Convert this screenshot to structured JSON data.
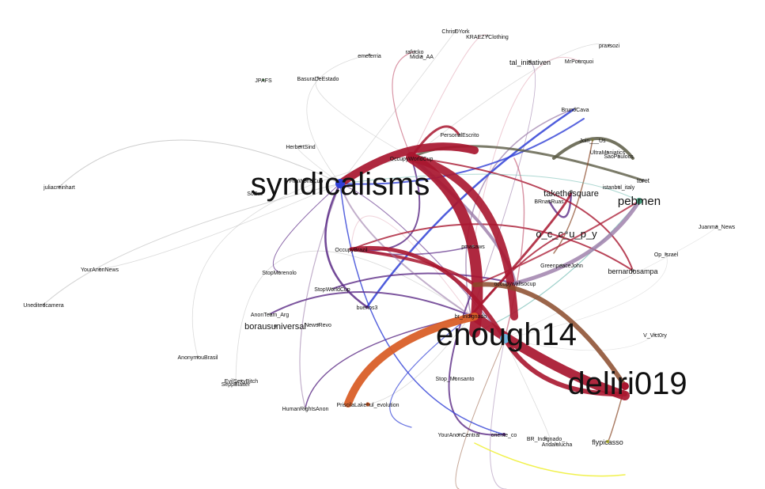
{
  "graph": {
    "colors": {
      "crimson": "#a8162f",
      "crimson_light": "#c0506a",
      "orange": "#d95f28",
      "purple": "#5b2a86",
      "blue": "#2f3fd6",
      "mauve": "#9a7aa8",
      "olive": "#5a5a44",
      "brown": "#8a4a2a",
      "grey": "#b8b8b8",
      "pink": "#e2a6b6",
      "teal": "#5fb3a8",
      "yellow": "#f0f03a"
    },
    "nodes": [
      {
        "id": "syndicalisms",
        "label": "syndicalisms"
      },
      {
        "id": "enough14",
        "label": "enough14"
      },
      {
        "id": "deliri019",
        "label": "deliri019"
      },
      {
        "id": "pebmen",
        "label": "pebmen"
      },
      {
        "id": "occupy",
        "label": "o_c_c_u_p_y"
      },
      {
        "id": "takethesquare",
        "label": "takethesquare"
      },
      {
        "id": "borausuniversal",
        "label": "borausuniversal"
      },
      {
        "id": "tal_initiativen",
        "label": "tal_initiativen"
      },
      {
        "id": "bernardosampa",
        "label": "bernardosampa"
      },
      {
        "id": "flypicasso",
        "label": "flypicasso"
      },
      {
        "id": "toret",
        "label": "toret"
      },
      {
        "id": "ChrisDYork",
        "label": "ChrisDYork"
      },
      {
        "id": "KRAEZYClothing",
        "label": "KRAEZYClothing"
      },
      {
        "id": "praxsozi",
        "label": "praxsozi"
      },
      {
        "id": "rafucko",
        "label": "rafucko"
      },
      {
        "id": "Midia_AA",
        "label": "Midia_AA"
      },
      {
        "id": "emeterria",
        "label": "emeterria"
      },
      {
        "id": "MrPourquoi",
        "label": "MrPourquoi"
      },
      {
        "id": "JPAFS",
        "label": "JPAFS"
      },
      {
        "id": "BasuraDeEstado",
        "label": "BasuraDeEstado"
      },
      {
        "id": "BrunoCava",
        "label": "BrunoCava"
      },
      {
        "id": "PersonalEscrito",
        "label": "PersonalEscrito"
      },
      {
        "id": "Join___Us",
        "label": "Join___Us"
      },
      {
        "id": "HerbertSind",
        "label": "HerbertSind"
      },
      {
        "id": "UltraManiatics",
        "label": "UltraManiatics"
      },
      {
        "id": "OccupyWorldCup",
        "label": "OccupyWorldCup"
      },
      {
        "id": "SaoPaulocs",
        "label": "SaoPaulocs"
      },
      {
        "id": "juliacreinhart",
        "label": "juliacreinhart"
      },
      {
        "id": "FifaWorldCup",
        "label": "FifaWorldCup"
      },
      {
        "id": "istanbul_italy",
        "label": "istanbul_italy"
      },
      {
        "id": "SoDm",
        "label": "SoDm"
      },
      {
        "id": "BRnasRuas",
        "label": "BRnasRuas"
      },
      {
        "id": "Juanma_News",
        "label": "Juanma_News"
      },
      {
        "id": "Op_Israel",
        "label": "Op_Israel"
      },
      {
        "id": "OccupyBrazil",
        "label": "OccupyBrazil"
      },
      {
        "id": "pmasaws",
        "label": "pmasaws"
      },
      {
        "id": "YourAnonNews",
        "label": "YourAnonNews"
      },
      {
        "id": "GreenpeaceJohn",
        "label": "GreenpeaceJohn"
      },
      {
        "id": "StopMorenolo",
        "label": "StopMorenolo"
      },
      {
        "id": "occupywallstreet",
        "label": "occupywallsocup"
      },
      {
        "id": "StopWorldCup",
        "label": "StopWorldCup"
      },
      {
        "id": "Uneditedcamera",
        "label": "Uneditedcamera"
      },
      {
        "id": "buenos3",
        "label": "buenos3"
      },
      {
        "id": "AnonTeam_Arg",
        "label": "AnonTeam_Arg"
      },
      {
        "id": "br_indignado",
        "label": "br_indignado"
      },
      {
        "id": "NewsRevo",
        "label": "NewsRevo"
      },
      {
        "id": "V_Vict0ry",
        "label": "V_Vict0ry"
      },
      {
        "id": "AnonymouBrasil",
        "label": "AnonymouBrasil"
      },
      {
        "id": "Stop_Monsanto",
        "label": "Stop_Monsanto"
      },
      {
        "id": "SeppBlatter",
        "label": "SeppBlatter"
      },
      {
        "id": "EvilSexyBitch",
        "label": "EvilSexyBitch"
      },
      {
        "id": "Priscila",
        "label": "PriscilaLakehul_evolution"
      },
      {
        "id": "HumanRightsAnon",
        "label": "HumanRightsAnon"
      },
      {
        "id": "YourAnonCentral",
        "label": "YourAnonCentral"
      },
      {
        "id": "oriente_co",
        "label": "oriente_co"
      },
      {
        "id": "BR_Indignado_",
        "label": "BR_Indignado_"
      },
      {
        "id": "Andalulucha",
        "label": "Andalulucha"
      }
    ]
  }
}
